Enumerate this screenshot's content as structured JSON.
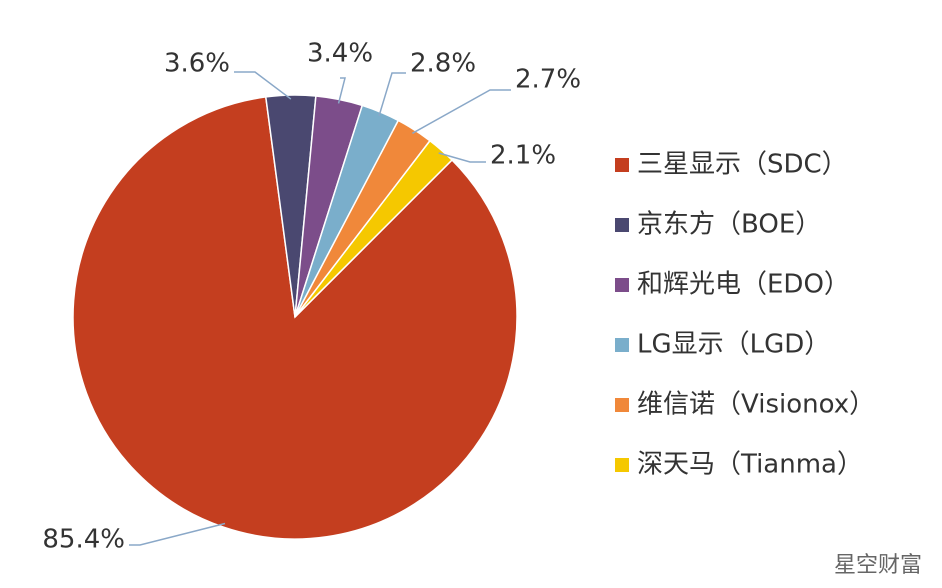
{
  "chart_data": {
    "type": "pie",
    "categories": [
      "三星显示（SDC）",
      "京东方（BOE）",
      "和辉光电（EDO）",
      "LG显示（LGD）",
      "维信诺（Visionox）",
      "深天马（Tianma）"
    ],
    "values": [
      85.4,
      3.6,
      3.4,
      2.8,
      2.7,
      2.1
    ],
    "value_labels": [
      "85.4%",
      "3.6%",
      "3.4%",
      "2.8%",
      "2.7%",
      "2.1%"
    ],
    "colors": [
      "#c43e1f",
      "#4a4870",
      "#7c4d8a",
      "#7aaecb",
      "#f0883a",
      "#f5c800"
    ],
    "legend": "right"
  },
  "watermark": "星空财富"
}
